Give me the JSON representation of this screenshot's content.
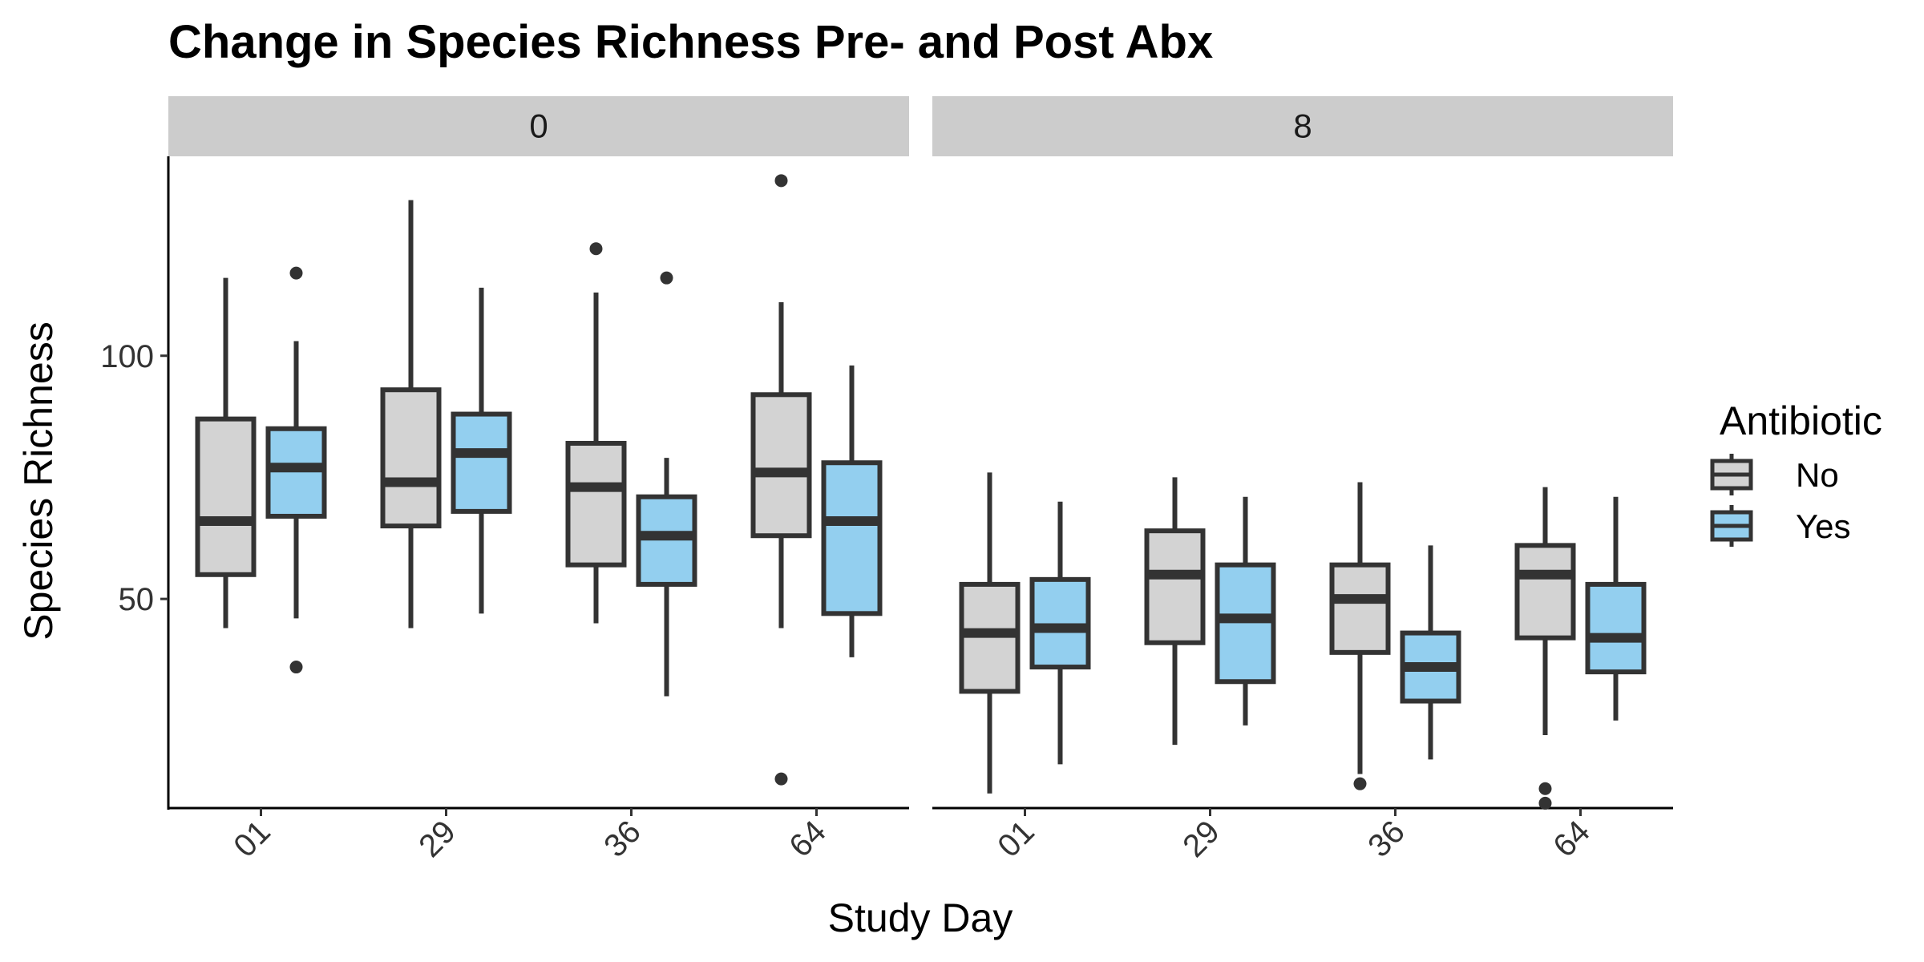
{
  "chart_data": {
    "type": "boxplot",
    "title": "Change in Species Richness Pre- and Post Abx",
    "xlabel": "Study Day",
    "ylabel": "Species Richness",
    "ylim": [
      7,
      141
    ],
    "yticks": [
      50,
      100
    ],
    "categories": [
      "01",
      "29",
      "36",
      "64"
    ],
    "facets": [
      "0",
      "8"
    ],
    "legend": {
      "title": "Antibiotic",
      "position": "right",
      "entries": [
        {
          "label": "No",
          "color": "#d3d3d3"
        },
        {
          "label": "Yes",
          "color": "#93cfef"
        }
      ]
    },
    "series": [
      {
        "name": "No",
        "color": "#d3d3d3",
        "panels": [
          {
            "facet": "0",
            "boxes": [
              {
                "category": "01",
                "whisker_low": 44,
                "q1": 55,
                "median": 66,
                "q3": 87,
                "whisker_high": 116,
                "outliers": []
              },
              {
                "category": "29",
                "whisker_low": 44,
                "q1": 65,
                "median": 74,
                "q3": 93,
                "whisker_high": 132,
                "outliers": []
              },
              {
                "category": "36",
                "whisker_low": 45,
                "q1": 57,
                "median": 73,
                "q3": 82,
                "whisker_high": 113,
                "outliers": [
                  122
                ]
              },
              {
                "category": "64",
                "whisker_low": 44,
                "q1": 63,
                "median": 76,
                "q3": 92,
                "whisker_high": 111,
                "outliers": [
                  136,
                  13
                ]
              }
            ]
          },
          {
            "facet": "8",
            "boxes": [
              {
                "category": "01",
                "whisker_low": 10,
                "q1": 31,
                "median": 43,
                "q3": 53,
                "whisker_high": 76,
                "outliers": []
              },
              {
                "category": "29",
                "whisker_low": 20,
                "q1": 41,
                "median": 55,
                "q3": 64,
                "whisker_high": 75,
                "outliers": []
              },
              {
                "category": "36",
                "whisker_low": 14,
                "q1": 39,
                "median": 50,
                "q3": 57,
                "whisker_high": 74,
                "outliers": [
                  12
                ]
              },
              {
                "category": "64",
                "whisker_low": 22,
                "q1": 42,
                "median": 55,
                "q3": 61,
                "whisker_high": 73,
                "outliers": [
                  11,
                  8
                ]
              }
            ]
          }
        ]
      },
      {
        "name": "Yes",
        "color": "#93cfef",
        "panels": [
          {
            "facet": "0",
            "boxes": [
              {
                "category": "01",
                "whisker_low": 46,
                "q1": 67,
                "median": 77,
                "q3": 85,
                "whisker_high": 103,
                "outliers": [
                  117,
                  36
                ]
              },
              {
                "category": "29",
                "whisker_low": 47,
                "q1": 68,
                "median": 80,
                "q3": 88,
                "whisker_high": 114,
                "outliers": []
              },
              {
                "category": "36",
                "whisker_low": 30,
                "q1": 53,
                "median": 63,
                "q3": 71,
                "whisker_high": 79,
                "outliers": [
                  116
                ]
              },
              {
                "category": "64",
                "whisker_low": 38,
                "q1": 47,
                "median": 66,
                "q3": 78,
                "whisker_high": 98,
                "outliers": []
              }
            ]
          },
          {
            "facet": "8",
            "boxes": [
              {
                "category": "01",
                "whisker_low": 16,
                "q1": 36,
                "median": 44,
                "q3": 54,
                "whisker_high": 70,
                "outliers": []
              },
              {
                "category": "29",
                "whisker_low": 24,
                "q1": 33,
                "median": 46,
                "q3": 57,
                "whisker_high": 71,
                "outliers": []
              },
              {
                "category": "36",
                "whisker_low": 17,
                "q1": 29,
                "median": 36,
                "q3": 43,
                "whisker_high": 61,
                "outliers": []
              },
              {
                "category": "64",
                "whisker_low": 25,
                "q1": 35,
                "median": 42,
                "q3": 53,
                "whisker_high": 71,
                "outliers": []
              }
            ]
          }
        ]
      }
    ],
    "grid": false
  }
}
